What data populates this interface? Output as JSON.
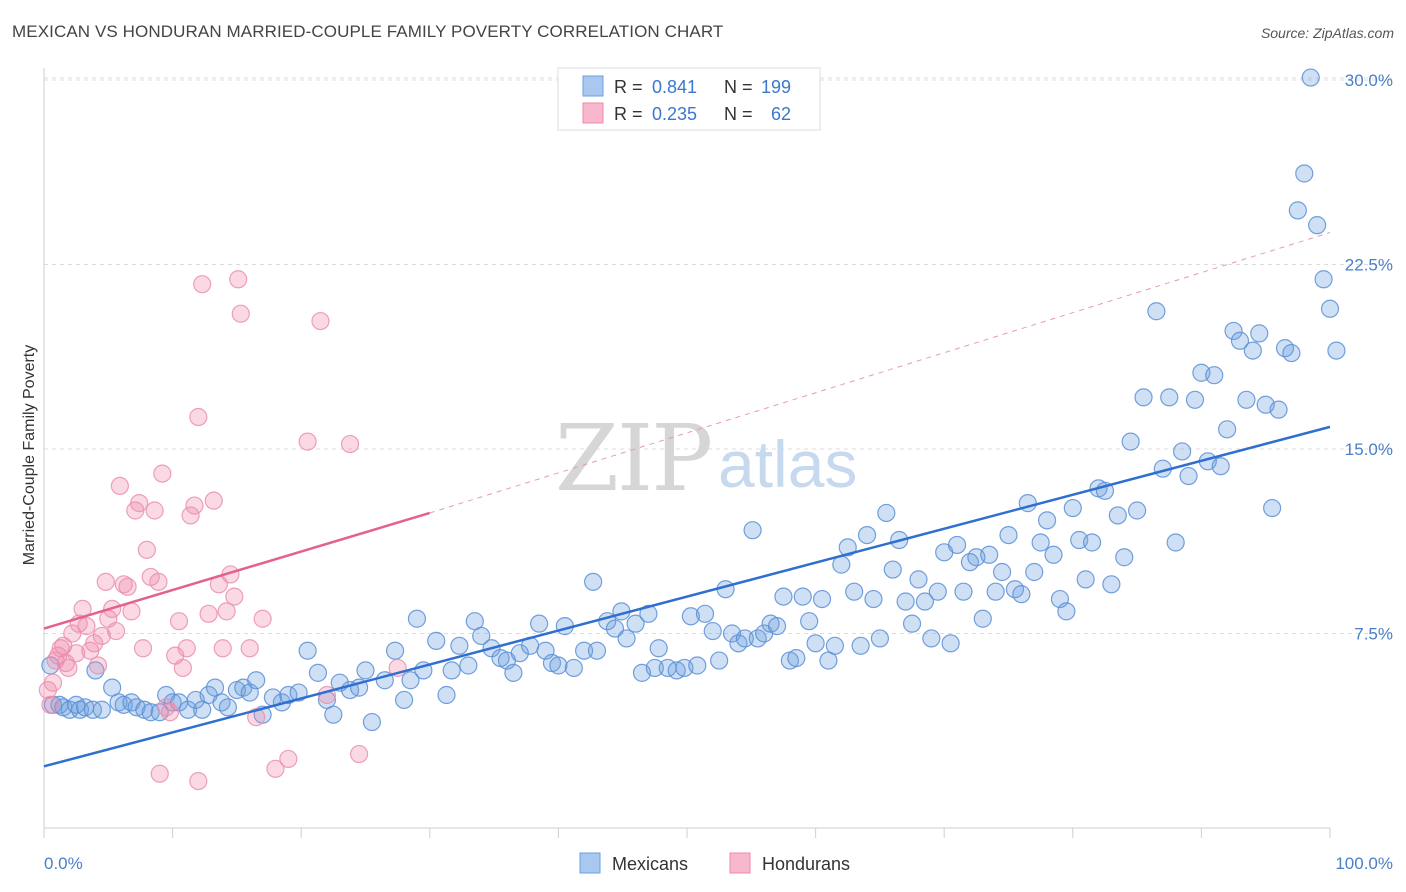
{
  "title": "MEXICAN VS HONDURAN MARRIED-COUPLE FAMILY POVERTY CORRELATION CHART",
  "source": "Source: ZipAtlas.com",
  "watermark": {
    "zip": "ZIP",
    "atlas": "atlas"
  },
  "legend": {
    "rows": [
      {
        "r_label": "R = ",
        "r_value": "0.841",
        "n_label": "N = ",
        "n_value": "199",
        "color": "#a8c8f0"
      },
      {
        "r_label": "R = ",
        "r_value": "0.235",
        "n_label": "N = ",
        "n_value": "62",
        "color": "#f7b7cc"
      }
    ]
  },
  "bottom_legend": [
    "Mexicans",
    "Hondurans"
  ],
  "chart_data": {
    "type": "scatter",
    "title": "MEXICAN VS HONDURAN MARRIED-COUPLE FAMILY POVERTY CORRELATION CHART",
    "xlabel": "",
    "ylabel": "Married-Couple Family Poverty",
    "xlim": [
      0,
      100
    ],
    "ylim": [
      0,
      30
    ],
    "x_tick_labels": [
      "0.0%",
      "100.0%"
    ],
    "y_ticks": [
      7.5,
      15.0,
      22.5,
      30.0
    ],
    "y_tick_labels": [
      "7.5%",
      "15.0%",
      "22.5%",
      "30.0%"
    ],
    "grid": "horizontal dashed",
    "legend_position": "top-center",
    "colors": {
      "mexicans": "#6a9fe0",
      "hondurans": "#f08aab",
      "mex_line": "#2f6fcf",
      "hon_line": "#e3628c"
    },
    "series": [
      {
        "name": "Mexicans",
        "trend": {
          "x": [
            0,
            100
          ],
          "y": [
            2.1,
            15.9
          ],
          "style": "solid"
        },
        "points": [
          [
            0.5,
            6.2
          ],
          [
            0.7,
            4.6
          ],
          [
            1.2,
            4.6
          ],
          [
            1.5,
            4.5
          ],
          [
            2.0,
            4.4
          ],
          [
            2.5,
            4.6
          ],
          [
            2.8,
            4.4
          ],
          [
            3.2,
            4.5
          ],
          [
            3.8,
            4.4
          ],
          [
            4.0,
            6.0
          ],
          [
            4.5,
            4.4
          ],
          [
            5.3,
            5.3
          ],
          [
            5.8,
            4.7
          ],
          [
            6.2,
            4.6
          ],
          [
            6.8,
            4.7
          ],
          [
            7.2,
            4.5
          ],
          [
            7.8,
            4.4
          ],
          [
            8.3,
            4.3
          ],
          [
            9.0,
            4.3
          ],
          [
            9.5,
            5.0
          ],
          [
            10.0,
            4.7
          ],
          [
            10.5,
            4.7
          ],
          [
            11.2,
            4.4
          ],
          [
            11.8,
            4.8
          ],
          [
            12.3,
            4.4
          ],
          [
            12.8,
            5.0
          ],
          [
            13.3,
            5.3
          ],
          [
            13.8,
            4.7
          ],
          [
            14.3,
            4.5
          ],
          [
            15.0,
            5.2
          ],
          [
            15.5,
            5.3
          ],
          [
            16.0,
            5.1
          ],
          [
            16.5,
            5.6
          ],
          [
            17.0,
            4.2
          ],
          [
            17.8,
            4.9
          ],
          [
            18.5,
            4.7
          ],
          [
            19.0,
            5.0
          ],
          [
            19.8,
            5.1
          ],
          [
            20.5,
            6.8
          ],
          [
            21.3,
            5.9
          ],
          [
            22.0,
            4.8
          ],
          [
            22.5,
            4.2
          ],
          [
            23.0,
            5.5
          ],
          [
            23.8,
            5.2
          ],
          [
            24.5,
            5.3
          ],
          [
            25.0,
            6.0
          ],
          [
            25.5,
            3.9
          ],
          [
            26.5,
            5.6
          ],
          [
            27.3,
            6.8
          ],
          [
            28.0,
            4.8
          ],
          [
            28.5,
            5.6
          ],
          [
            29.0,
            8.1
          ],
          [
            29.5,
            6.0
          ],
          [
            30.5,
            7.2
          ],
          [
            31.3,
            5.0
          ],
          [
            31.7,
            6.0
          ],
          [
            32.3,
            7.0
          ],
          [
            33.0,
            6.2
          ],
          [
            33.5,
            8.0
          ],
          [
            34.0,
            7.4
          ],
          [
            34.8,
            6.9
          ],
          [
            35.5,
            6.5
          ],
          [
            36.0,
            6.4
          ],
          [
            36.5,
            5.9
          ],
          [
            37.0,
            6.7
          ],
          [
            37.8,
            7.0
          ],
          [
            38.5,
            7.9
          ],
          [
            39.0,
            6.8
          ],
          [
            39.5,
            6.3
          ],
          [
            40.0,
            6.2
          ],
          [
            40.5,
            7.8
          ],
          [
            41.2,
            6.1
          ],
          [
            42.0,
            6.8
          ],
          [
            42.7,
            9.6
          ],
          [
            43.0,
            6.8
          ],
          [
            43.8,
            8.0
          ],
          [
            44.4,
            7.7
          ],
          [
            44.9,
            8.4
          ],
          [
            45.3,
            7.3
          ],
          [
            46.0,
            7.9
          ],
          [
            46.5,
            5.9
          ],
          [
            47.0,
            8.3
          ],
          [
            47.5,
            6.1
          ],
          [
            47.8,
            6.9
          ],
          [
            48.5,
            6.1
          ],
          [
            49.2,
            6.0
          ],
          [
            49.8,
            6.1
          ],
          [
            50.3,
            8.2
          ],
          [
            50.8,
            6.2
          ],
          [
            51.4,
            8.3
          ],
          [
            52.0,
            7.6
          ],
          [
            52.5,
            6.4
          ],
          [
            53.0,
            9.3
          ],
          [
            53.5,
            7.5
          ],
          [
            54.0,
            7.1
          ],
          [
            54.5,
            7.3
          ],
          [
            55.1,
            11.7
          ],
          [
            55.5,
            7.3
          ],
          [
            56.0,
            7.5
          ],
          [
            56.5,
            7.9
          ],
          [
            57.0,
            7.8
          ],
          [
            57.5,
            9.0
          ],
          [
            58.0,
            6.4
          ],
          [
            58.5,
            6.5
          ],
          [
            59.0,
            9.0
          ],
          [
            59.5,
            8.0
          ],
          [
            60.0,
            7.1
          ],
          [
            60.5,
            8.9
          ],
          [
            61.0,
            6.4
          ],
          [
            61.5,
            7.0
          ],
          [
            62.0,
            10.3
          ],
          [
            62.5,
            11.0
          ],
          [
            63.0,
            9.2
          ],
          [
            63.5,
            7.0
          ],
          [
            64.0,
            11.5
          ],
          [
            64.5,
            8.9
          ],
          [
            65.0,
            7.3
          ],
          [
            65.5,
            12.4
          ],
          [
            66.0,
            10.1
          ],
          [
            66.5,
            11.3
          ],
          [
            67.0,
            8.8
          ],
          [
            67.5,
            7.9
          ],
          [
            68.0,
            9.7
          ],
          [
            68.5,
            8.8
          ],
          [
            69.0,
            7.3
          ],
          [
            69.5,
            9.2
          ],
          [
            70.0,
            10.8
          ],
          [
            70.5,
            7.1
          ],
          [
            71.0,
            11.1
          ],
          [
            71.5,
            9.2
          ],
          [
            72.0,
            10.4
          ],
          [
            72.5,
            10.6
          ],
          [
            73.0,
            8.1
          ],
          [
            73.5,
            10.7
          ],
          [
            74.0,
            9.2
          ],
          [
            74.5,
            10.0
          ],
          [
            75.0,
            11.5
          ],
          [
            75.5,
            9.3
          ],
          [
            76.0,
            9.1
          ],
          [
            76.5,
            12.8
          ],
          [
            77.0,
            10.0
          ],
          [
            77.5,
            11.2
          ],
          [
            78.0,
            12.1
          ],
          [
            78.5,
            10.7
          ],
          [
            79.0,
            8.9
          ],
          [
            79.5,
            8.4
          ],
          [
            80.0,
            12.6
          ],
          [
            80.5,
            11.3
          ],
          [
            81.0,
            9.7
          ],
          [
            81.5,
            11.2
          ],
          [
            82.0,
            13.4
          ],
          [
            82.5,
            13.3
          ],
          [
            83.0,
            9.5
          ],
          [
            83.5,
            12.3
          ],
          [
            84.0,
            10.6
          ],
          [
            84.5,
            15.3
          ],
          [
            85.0,
            12.5
          ],
          [
            85.5,
            17.1
          ],
          [
            86.5,
            20.6
          ],
          [
            87.0,
            14.2
          ],
          [
            87.5,
            17.1
          ],
          [
            88.0,
            11.2
          ],
          [
            88.5,
            14.9
          ],
          [
            89.0,
            13.9
          ],
          [
            89.5,
            17.0
          ],
          [
            90.0,
            18.1
          ],
          [
            90.5,
            14.5
          ],
          [
            91.0,
            18.0
          ],
          [
            91.5,
            14.3
          ],
          [
            92.0,
            15.8
          ],
          [
            92.5,
            19.8
          ],
          [
            93.0,
            19.4
          ],
          [
            93.5,
            17.0
          ],
          [
            94.0,
            19.0
          ],
          [
            94.5,
            19.7
          ],
          [
            95.0,
            16.8
          ],
          [
            95.5,
            12.6
          ],
          [
            96.0,
            16.6
          ],
          [
            96.5,
            19.1
          ],
          [
            97.0,
            18.9
          ],
          [
            97.5,
            24.7
          ],
          [
            98.0,
            26.2
          ],
          [
            98.5,
            30.1
          ],
          [
            99.0,
            24.1
          ],
          [
            99.5,
            21.9
          ],
          [
            100.0,
            20.7
          ],
          [
            100.5,
            19.0
          ]
        ]
      },
      {
        "name": "Hondurans",
        "trend": {
          "x": [
            0,
            30
          ],
          "y": [
            7.7,
            12.4
          ],
          "style": "solid"
        },
        "trend_dashed": {
          "x": [
            30,
            100
          ],
          "y": [
            12.4,
            23.8
          ]
        },
        "points": [
          [
            0.3,
            5.2
          ],
          [
            0.5,
            4.6
          ],
          [
            0.7,
            5.5
          ],
          [
            0.9,
            6.4
          ],
          [
            1.1,
            6.6
          ],
          [
            1.3,
            6.9
          ],
          [
            1.5,
            7.0
          ],
          [
            1.7,
            6.3
          ],
          [
            1.9,
            6.1
          ],
          [
            2.2,
            7.5
          ],
          [
            2.5,
            6.7
          ],
          [
            2.7,
            7.9
          ],
          [
            3.0,
            8.5
          ],
          [
            3.3,
            7.8
          ],
          [
            3.6,
            6.8
          ],
          [
            3.9,
            7.1
          ],
          [
            4.2,
            6.2
          ],
          [
            4.5,
            7.4
          ],
          [
            4.8,
            9.6
          ],
          [
            5.0,
            8.1
          ],
          [
            5.3,
            8.5
          ],
          [
            5.6,
            7.6
          ],
          [
            5.9,
            13.5
          ],
          [
            6.2,
            9.5
          ],
          [
            6.5,
            9.4
          ],
          [
            6.8,
            8.4
          ],
          [
            7.1,
            12.5
          ],
          [
            7.4,
            12.8
          ],
          [
            7.7,
            6.9
          ],
          [
            8.0,
            10.9
          ],
          [
            8.3,
            9.8
          ],
          [
            8.6,
            12.5
          ],
          [
            8.9,
            9.6
          ],
          [
            9.2,
            14.0
          ],
          [
            9.5,
            4.5
          ],
          [
            9.8,
            4.3
          ],
          [
            10.2,
            6.6
          ],
          [
            10.5,
            8.0
          ],
          [
            10.8,
            6.1
          ],
          [
            11.1,
            6.9
          ],
          [
            11.4,
            12.3
          ],
          [
            11.7,
            12.7
          ],
          [
            12.0,
            16.3
          ],
          [
            12.3,
            21.7
          ],
          [
            12.8,
            8.3
          ],
          [
            13.2,
            12.9
          ],
          [
            13.6,
            9.5
          ],
          [
            13.9,
            6.9
          ],
          [
            14.2,
            8.4
          ],
          [
            14.5,
            9.9
          ],
          [
            14.8,
            9.0
          ],
          [
            15.1,
            21.9
          ],
          [
            15.3,
            20.5
          ],
          [
            16.0,
            6.9
          ],
          [
            16.5,
            4.1
          ],
          [
            17.0,
            8.1
          ],
          [
            18.0,
            2.0
          ],
          [
            19.0,
            2.4
          ],
          [
            20.5,
            15.3
          ],
          [
            21.5,
            20.2
          ],
          [
            22.0,
            5.0
          ],
          [
            23.8,
            15.2
          ],
          [
            24.5,
            2.6
          ],
          [
            27.5,
            6.1
          ],
          [
            9.0,
            1.8
          ],
          [
            12.0,
            1.5
          ]
        ]
      }
    ]
  }
}
